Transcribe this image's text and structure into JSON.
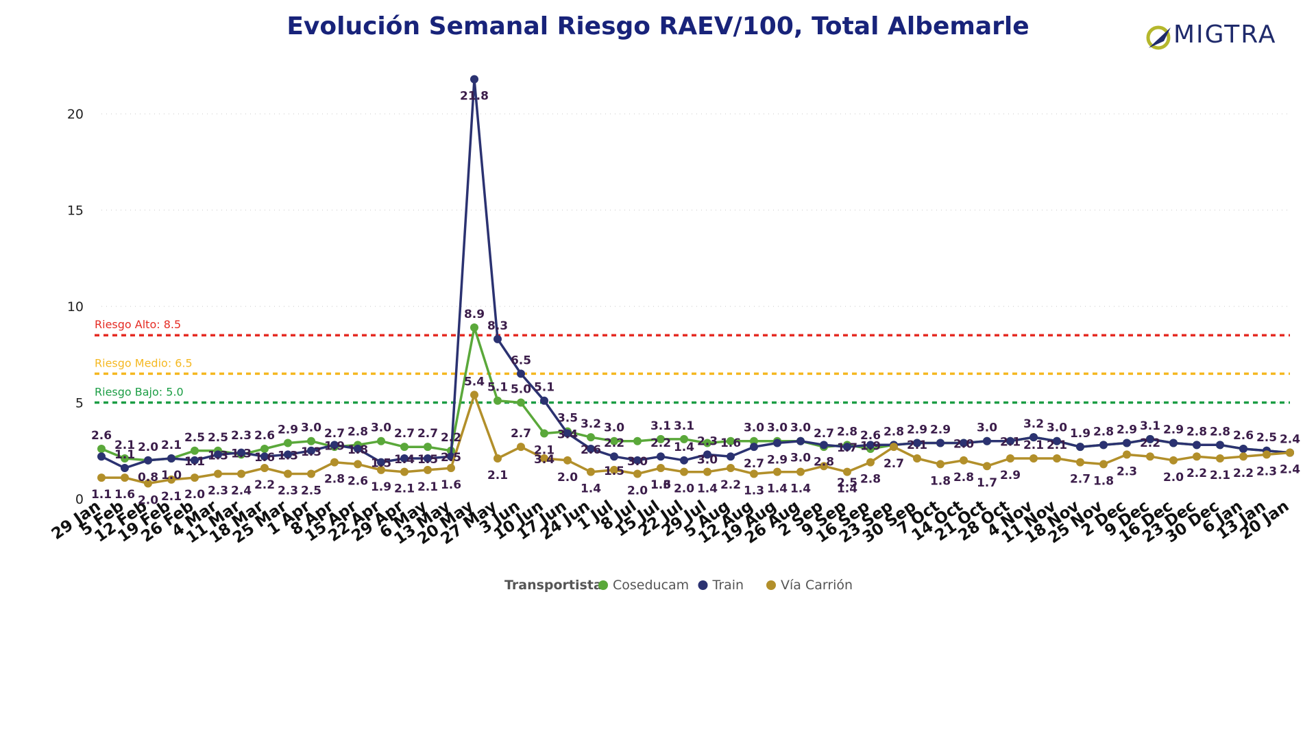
{
  "title": "Evolución Semanal Riesgo RAEV/100, Total Albemarle",
  "logo": {
    "text": "MIGTRA",
    "mark": "O"
  },
  "colors": {
    "title": "#18237a",
    "Coseducam": "#5aa83a",
    "Train": "#2b3271",
    "Via": "#b28f2a",
    "labels": "#3b1d4a",
    "alto": "#e52b23",
    "medio": "#f5b821",
    "bajo": "#1b9d44",
    "grid": "#c8c8c8",
    "axis": "#222222"
  },
  "chart_data": {
    "type": "line",
    "categories": [
      "29 Jan",
      "5 Feb",
      "12 Feb",
      "19 Feb",
      "26 Feb",
      "4 Mar",
      "11 Mar",
      "18 Mar",
      "25 Mar",
      "1 Apr",
      "8 Apr",
      "15 Apr",
      "22 Apr",
      "29 Apr",
      "6 May",
      "13 May",
      "20 May",
      "27 May",
      "3 Jun",
      "10 Jun",
      "17 Jun",
      "24 Jun",
      "1 Jul",
      "8 Jul",
      "15 Jul",
      "22 Jul",
      "29 Jul",
      "5 Aug",
      "12 Aug",
      "19 Aug",
      "26 Aug",
      "2 Sep",
      "9 Sep",
      "16 Sep",
      "23 Sep",
      "30 Sep",
      "7 Oct",
      "14 Oct",
      "21 Oct",
      "28 Oct",
      "4 Nov",
      "11 Nov",
      "18 Nov",
      "25 Nov",
      "2 Dec",
      "9 Dec",
      "16 Dec",
      "23 Dec",
      "30 Dec",
      "6 Jan",
      "13 Jan",
      "20 Jan"
    ],
    "ylim": [
      0,
      22
    ],
    "yticks": [
      0,
      5,
      10,
      15,
      20
    ],
    "grid": true,
    "legend": {
      "title": "Transportista",
      "placement": "bottom-center"
    },
    "thresholds": [
      {
        "label": "Riesgo Alto: 8.5",
        "value": 8.5,
        "color_key": "alto"
      },
      {
        "label": "Riesgo Medio: 6.5",
        "value": 6.5,
        "color_key": "medio"
      },
      {
        "label": "Riesgo Bajo: 5.0",
        "value": 5.0,
        "color_key": "bajo"
      }
    ],
    "series": [
      {
        "name": "Coseducam",
        "color_key": "Coseducam",
        "values": [
          2.6,
          2.1,
          2.0,
          2.1,
          2.5,
          2.5,
          2.3,
          2.6,
          2.9,
          3.0,
          2.7,
          2.8,
          3.0,
          2.7,
          2.7,
          2.5,
          8.9,
          5.1,
          5.0,
          3.4,
          3.5,
          3.2,
          3.0,
          3.0,
          3.1,
          3.1,
          2.9,
          3.0,
          3.0,
          3.0,
          3.0,
          2.7,
          2.8,
          2.6,
          2.8,
          2.9,
          2.9,
          2.9,
          3.0,
          3.0,
          3.2,
          3.0,
          2.7,
          2.8,
          2.9,
          3.1,
          2.9,
          2.8,
          2.8,
          2.6,
          2.5,
          2.4
        ]
      },
      {
        "name": "Train",
        "color_key": "Train",
        "values": [
          2.2,
          1.6,
          2.0,
          2.1,
          2.0,
          2.3,
          2.4,
          2.2,
          2.3,
          2.5,
          2.8,
          2.6,
          1.9,
          2.1,
          2.1,
          2.2,
          21.8,
          8.3,
          6.5,
          5.1,
          3.4,
          2.6,
          2.2,
          2.0,
          2.2,
          2.0,
          2.3,
          2.2,
          2.7,
          2.9,
          3.0,
          2.8,
          2.7,
          2.8,
          2.8,
          2.9,
          2.9,
          2.9,
          3.0,
          3.0,
          3.2,
          3.0,
          2.7,
          2.8,
          2.9,
          3.1,
          2.9,
          2.8,
          2.8,
          2.6,
          2.5,
          2.4
        ]
      },
      {
        "name": "Vía Carrión",
        "color_key": "Via",
        "values": [
          1.1,
          1.1,
          0.8,
          1.0,
          1.1,
          1.3,
          1.3,
          1.6,
          1.3,
          1.3,
          1.9,
          1.8,
          1.5,
          1.4,
          1.5,
          1.6,
          5.4,
          2.1,
          2.7,
          2.1,
          2.0,
          1.4,
          1.5,
          1.3,
          1.6,
          1.4,
          1.4,
          1.6,
          1.3,
          1.4,
          1.4,
          1.7,
          1.4,
          1.9,
          2.7,
          2.1,
          1.8,
          2.0,
          1.7,
          2.1,
          2.1,
          2.1,
          1.9,
          1.8,
          2.3,
          2.2,
          2.0,
          2.2,
          2.1,
          2.2,
          2.3,
          2.4
        ]
      }
    ],
    "data_labels": [
      {
        "x": 0,
        "text": "2.6",
        "v": 2.6,
        "pos": "above"
      },
      {
        "x": 0,
        "text": "1.1",
        "v": 1.1,
        "pos": "below"
      },
      {
        "x": 1,
        "text": "2.1",
        "v": 2.1,
        "pos": "above"
      },
      {
        "x": 1,
        "text": "1.1",
        "v": 1.6,
        "pos": "above"
      },
      {
        "x": 1,
        "text": "1.6",
        "v": 1.1,
        "pos": "below"
      },
      {
        "x": 2,
        "text": "2.0",
        "v": 2.0,
        "pos": "above"
      },
      {
        "x": 2,
        "text": "0.8",
        "v": 2.0,
        "pos": "below"
      },
      {
        "x": 2,
        "text": "2.0",
        "v": 0.8,
        "pos": "below"
      },
      {
        "x": 3,
        "text": "2.1",
        "v": 2.1,
        "pos": "above"
      },
      {
        "x": 3,
        "text": "1.0",
        "v": 2.1,
        "pos": "below"
      },
      {
        "x": 3,
        "text": "2.1",
        "v": 1.0,
        "pos": "below"
      },
      {
        "x": 4,
        "text": "2.5",
        "v": 2.5,
        "pos": "above"
      },
      {
        "x": 4,
        "text": "1.1",
        "v": 2.0,
        "pos": "center"
      },
      {
        "x": 4,
        "text": "2.0",
        "v": 1.1,
        "pos": "below"
      },
      {
        "x": 5,
        "text": "2.5",
        "v": 2.5,
        "pos": "above"
      },
      {
        "x": 5,
        "text": "1.3",
        "v": 2.3,
        "pos": "center"
      },
      {
        "x": 5,
        "text": "2.3",
        "v": 1.3,
        "pos": "below"
      },
      {
        "x": 6,
        "text": "2.3",
        "v": 2.6,
        "pos": "above"
      },
      {
        "x": 6,
        "text": "1.3",
        "v": 2.4,
        "pos": "center"
      },
      {
        "x": 6,
        "text": "2.4",
        "v": 1.3,
        "pos": "below"
      },
      {
        "x": 7,
        "text": "2.6",
        "v": 2.6,
        "pos": "above"
      },
      {
        "x": 7,
        "text": "1.6",
        "v": 2.2,
        "pos": "center"
      },
      {
        "x": 7,
        "text": "2.2",
        "v": 1.6,
        "pos": "below"
      },
      {
        "x": 8,
        "text": "2.9",
        "v": 2.9,
        "pos": "above"
      },
      {
        "x": 8,
        "text": "1.3",
        "v": 2.3,
        "pos": "center"
      },
      {
        "x": 8,
        "text": "2.3",
        "v": 1.3,
        "pos": "below"
      },
      {
        "x": 9,
        "text": "3.0",
        "v": 3.0,
        "pos": "above"
      },
      {
        "x": 9,
        "text": "1.3",
        "v": 2.5,
        "pos": "center"
      },
      {
        "x": 9,
        "text": "2.5",
        "v": 1.3,
        "pos": "below"
      },
      {
        "x": 10,
        "text": "2.7",
        "v": 2.7,
        "pos": "above"
      },
      {
        "x": 10,
        "text": "1.9",
        "v": 2.8,
        "pos": "center"
      },
      {
        "x": 10,
        "text": "2.8",
        "v": 1.9,
        "pos": "below"
      },
      {
        "x": 11,
        "text": "2.8",
        "v": 2.8,
        "pos": "above"
      },
      {
        "x": 11,
        "text": "1.8",
        "v": 2.6,
        "pos": "center"
      },
      {
        "x": 11,
        "text": "2.6",
        "v": 1.8,
        "pos": "below"
      },
      {
        "x": 12,
        "text": "3.0",
        "v": 3.0,
        "pos": "above"
      },
      {
        "x": 12,
        "text": "1.5",
        "v": 1.9,
        "pos": "center"
      },
      {
        "x": 12,
        "text": "1.9",
        "v": 1.5,
        "pos": "below"
      },
      {
        "x": 13,
        "text": "2.7",
        "v": 2.7,
        "pos": "above"
      },
      {
        "x": 13,
        "text": "1.4",
        "v": 2.1,
        "pos": "center"
      },
      {
        "x": 13,
        "text": "2.1",
        "v": 1.4,
        "pos": "below"
      },
      {
        "x": 14,
        "text": "2.7",
        "v": 2.7,
        "pos": "above"
      },
      {
        "x": 14,
        "text": "1.5",
        "v": 2.1,
        "pos": "center"
      },
      {
        "x": 14,
        "text": "2.1",
        "v": 1.5,
        "pos": "below"
      },
      {
        "x": 15,
        "text": "2.2",
        "v": 2.5,
        "pos": "above"
      },
      {
        "x": 15,
        "text": "2.5",
        "v": 2.2,
        "pos": "center"
      },
      {
        "x": 15,
        "text": "1.6",
        "v": 1.6,
        "pos": "below"
      },
      {
        "x": 16,
        "text": "21.8",
        "v": 21.8,
        "pos": "below"
      },
      {
        "x": 16,
        "text": "8.9",
        "v": 8.9,
        "pos": "above"
      },
      {
        "x": 16,
        "text": "5.4",
        "v": 5.4,
        "pos": "above"
      },
      {
        "x": 17,
        "text": "8.3",
        "v": 8.3,
        "pos": "above"
      },
      {
        "x": 17,
        "text": "5.1",
        "v": 5.1,
        "pos": "above"
      },
      {
        "x": 17,
        "text": "2.1",
        "v": 2.1,
        "pos": "below"
      },
      {
        "x": 18,
        "text": "6.5",
        "v": 6.5,
        "pos": "above"
      },
      {
        "x": 18,
        "text": "5.0",
        "v": 5.0,
        "pos": "above"
      },
      {
        "x": 18,
        "text": "2.7",
        "v": 2.7,
        "pos": "above"
      },
      {
        "x": 19,
        "text": "5.1",
        "v": 5.1,
        "pos": "above"
      },
      {
        "x": 19,
        "text": "2.1",
        "v": 3.4,
        "pos": "below"
      },
      {
        "x": 19,
        "text": "3.4",
        "v": 2.1,
        "pos": "center"
      },
      {
        "x": 20,
        "text": "3.5",
        "v": 3.5,
        "pos": "above"
      },
      {
        "x": 20,
        "text": "3.4",
        "v": 3.4,
        "pos": "center"
      },
      {
        "x": 20,
        "text": "2.0",
        "v": 2.0,
        "pos": "below"
      },
      {
        "x": 21,
        "text": "3.2",
        "v": 3.2,
        "pos": "above"
      },
      {
        "x": 21,
        "text": "2.6",
        "v": 2.6,
        "pos": "center"
      },
      {
        "x": 21,
        "text": "1.4",
        "v": 1.4,
        "pos": "below"
      },
      {
        "x": 22,
        "text": "3.0",
        "v": 3.0,
        "pos": "above"
      },
      {
        "x": 22,
        "text": "2.2",
        "v": 2.2,
        "pos": "above"
      },
      {
        "x": 22,
        "text": "1.5",
        "v": 1.5,
        "pos": "center"
      },
      {
        "x": 23,
        "text": "3.0",
        "v": 2.0,
        "pos": "center"
      },
      {
        "x": 23,
        "text": "2.0",
        "v": 1.3,
        "pos": "below"
      },
      {
        "x": 24,
        "text": "3.1",
        "v": 3.1,
        "pos": "above"
      },
      {
        "x": 24,
        "text": "2.2",
        "v": 2.2,
        "pos": "above"
      },
      {
        "x": 24,
        "text": "1.3",
        "v": 1.6,
        "pos": "below"
      },
      {
        "x": 24,
        "text": "1.6",
        "v": 1.6,
        "pos": "below"
      },
      {
        "x": 25,
        "text": "3.1",
        "v": 3.1,
        "pos": "above"
      },
      {
        "x": 25,
        "text": "1.4",
        "v": 2.0,
        "pos": "above"
      },
      {
        "x": 25,
        "text": "2.0",
        "v": 1.4,
        "pos": "below"
      },
      {
        "x": 26,
        "text": "2.3",
        "v": 2.3,
        "pos": "above"
      },
      {
        "x": 26,
        "text": "3.0",
        "v": 2.9,
        "pos": "below"
      },
      {
        "x": 26,
        "text": "1.4",
        "v": 1.4,
        "pos": "below"
      },
      {
        "x": 27,
        "text": "1.6",
        "v": 2.2,
        "pos": "above"
      },
      {
        "x": 27,
        "text": "2.2",
        "v": 1.6,
        "pos": "below"
      },
      {
        "x": 28,
        "text": "3.0",
        "v": 3.0,
        "pos": "above"
      },
      {
        "x": 28,
        "text": "2.7",
        "v": 2.7,
        "pos": "below"
      },
      {
        "x": 28,
        "text": "1.3",
        "v": 1.3,
        "pos": "below"
      },
      {
        "x": 29,
        "text": "3.0",
        "v": 3.0,
        "pos": "above"
      },
      {
        "x": 29,
        "text": "2.9",
        "v": 2.9,
        "pos": "below"
      },
      {
        "x": 29,
        "text": "1.4",
        "v": 1.4,
        "pos": "below"
      },
      {
        "x": 30,
        "text": "3.0",
        "v": 3.0,
        "pos": "above"
      },
      {
        "x": 30,
        "text": "3.0",
        "v": 3.0,
        "pos": "below"
      },
      {
        "x": 30,
        "text": "1.4",
        "v": 1.4,
        "pos": "below"
      },
      {
        "x": 31,
        "text": "2.7",
        "v": 2.7,
        "pos": "above"
      },
      {
        "x": 31,
        "text": "2.8",
        "v": 2.8,
        "pos": "below"
      },
      {
        "x": 32,
        "text": "2.8",
        "v": 2.8,
        "pos": "above"
      },
      {
        "x": 32,
        "text": "1.7",
        "v": 2.7,
        "pos": "center"
      },
      {
        "x": 32,
        "text": "2.5",
        "v": 1.7,
        "pos": "below"
      },
      {
        "x": 32,
        "text": "1.4",
        "v": 1.4,
        "pos": "below"
      },
      {
        "x": 33,
        "text": "2.6",
        "v": 2.6,
        "pos": "above"
      },
      {
        "x": 33,
        "text": "1.9",
        "v": 2.8,
        "pos": "center"
      },
      {
        "x": 33,
        "text": "2.8",
        "v": 1.9,
        "pos": "below"
      },
      {
        "x": 34,
        "text": "2.8",
        "v": 2.8,
        "pos": "above"
      },
      {
        "x": 34,
        "text": "2.7",
        "v": 2.7,
        "pos": "below"
      },
      {
        "x": 35,
        "text": "2.9",
        "v": 2.9,
        "pos": "above"
      },
      {
        "x": 35,
        "text": "2.1",
        "v": 2.1,
        "pos": "above"
      },
      {
        "x": 36,
        "text": "2.9",
        "v": 2.9,
        "pos": "above"
      },
      {
        "x": 36,
        "text": "1.8",
        "v": 1.8,
        "pos": "below"
      },
      {
        "x": 37,
        "text": "2.0",
        "v": 2.9,
        "pos": "center"
      },
      {
        "x": 37,
        "text": "2.8",
        "v": 2.0,
        "pos": "below"
      },
      {
        "x": 38,
        "text": "3.0",
        "v": 3.0,
        "pos": "above"
      },
      {
        "x": 38,
        "text": "1.7",
        "v": 1.7,
        "pos": "below"
      },
      {
        "x": 39,
        "text": "2.1",
        "v": 3.0,
        "pos": "center"
      },
      {
        "x": 39,
        "text": "2.9",
        "v": 2.1,
        "pos": "below"
      },
      {
        "x": 40,
        "text": "3.2",
        "v": 3.2,
        "pos": "above"
      },
      {
        "x": 40,
        "text": "2.1",
        "v": 2.1,
        "pos": "above"
      },
      {
        "x": 41,
        "text": "3.0",
        "v": 3.0,
        "pos": "above"
      },
      {
        "x": 41,
        "text": "2.1",
        "v": 2.1,
        "pos": "above"
      },
      {
        "x": 42,
        "text": "1.9",
        "v": 2.7,
        "pos": "above"
      },
      {
        "x": 42,
        "text": "2.7",
        "v": 1.9,
        "pos": "below"
      },
      {
        "x": 43,
        "text": "2.8",
        "v": 2.8,
        "pos": "above"
      },
      {
        "x": 43,
        "text": "1.8",
        "v": 1.8,
        "pos": "below"
      },
      {
        "x": 44,
        "text": "2.9",
        "v": 2.9,
        "pos": "above"
      },
      {
        "x": 44,
        "text": "2.3",
        "v": 2.3,
        "pos": "below"
      },
      {
        "x": 45,
        "text": "3.1",
        "v": 3.1,
        "pos": "above"
      },
      {
        "x": 45,
        "text": "2.2",
        "v": 2.2,
        "pos": "above"
      },
      {
        "x": 46,
        "text": "2.9",
        "v": 2.9,
        "pos": "above"
      },
      {
        "x": 46,
        "text": "2.0",
        "v": 2.0,
        "pos": "below"
      },
      {
        "x": 47,
        "text": "2.8",
        "v": 2.8,
        "pos": "above"
      },
      {
        "x": 47,
        "text": "2.2",
        "v": 2.2,
        "pos": "below"
      },
      {
        "x": 48,
        "text": "2.8",
        "v": 2.8,
        "pos": "above"
      },
      {
        "x": 48,
        "text": "2.1",
        "v": 2.1,
        "pos": "below"
      },
      {
        "x": 49,
        "text": "2.6",
        "v": 2.6,
        "pos": "above"
      },
      {
        "x": 49,
        "text": "2.2",
        "v": 2.2,
        "pos": "below"
      },
      {
        "x": 50,
        "text": "2.5",
        "v": 2.5,
        "pos": "above"
      },
      {
        "x": 50,
        "text": "2.3",
        "v": 2.3,
        "pos": "below"
      },
      {
        "x": 51,
        "text": "2.4",
        "v": 2.4,
        "pos": "above"
      },
      {
        "x": 51,
        "text": "2.4",
        "v": 2.4,
        "pos": "below"
      }
    ]
  }
}
